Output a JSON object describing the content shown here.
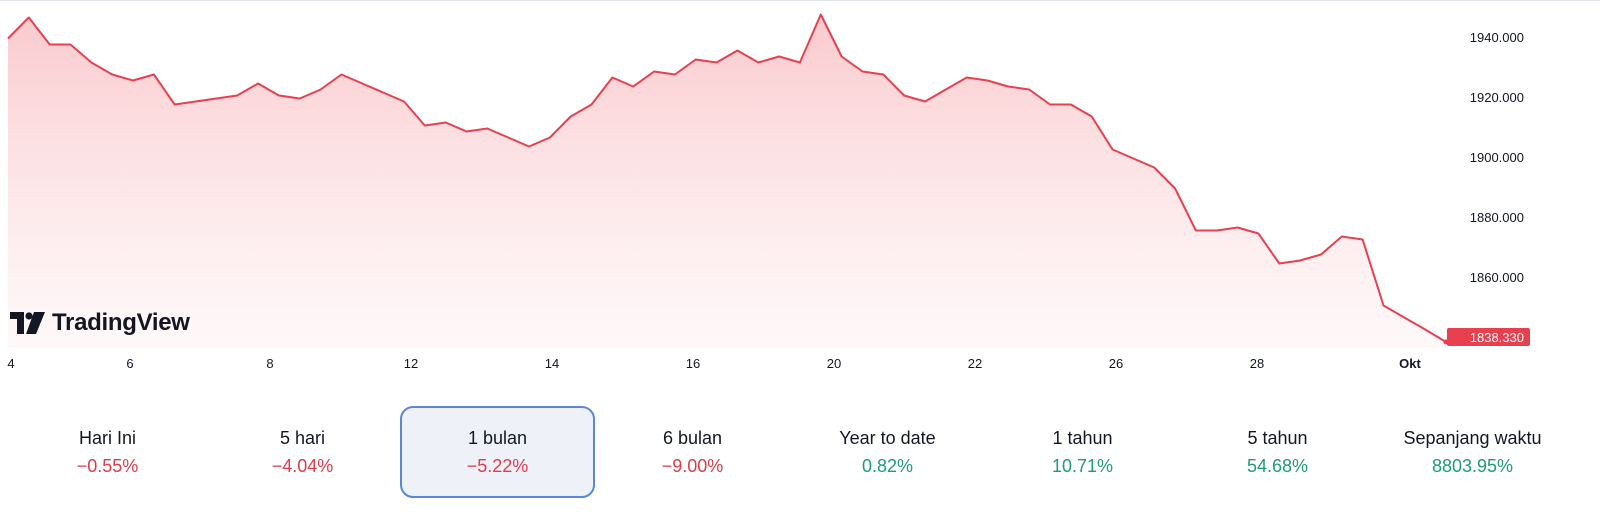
{
  "brand": {
    "logo_text": "TradingView"
  },
  "chart_data": {
    "type": "area",
    "x_ticks": [
      "4",
      "6",
      "8",
      "12",
      "14",
      "16",
      "20",
      "22",
      "26",
      "28",
      "Okt"
    ],
    "y_ticks": [
      1860,
      1880,
      1900,
      1920,
      1940
    ],
    "y_tick_labels": [
      "1860.000",
      "1880.000",
      "1900.000",
      "1920.000",
      "1940.000"
    ],
    "ylim": [
      1836,
      1947
    ],
    "last_value_label": "1838.330",
    "series": [
      {
        "points": [
          [
            "4",
            1940
          ],
          [
            "4",
            1946
          ],
          [
            "5",
            1938
          ],
          [
            "5",
            1937
          ],
          [
            "5",
            1932
          ],
          [
            "6",
            1927
          ],
          [
            "6",
            1926
          ],
          [
            "7",
            1927
          ],
          [
            "7",
            1918
          ],
          [
            "8",
            1918
          ],
          [
            "8",
            1920
          ],
          [
            "8",
            1920
          ],
          [
            "9",
            1925
          ],
          [
            "9",
            1920
          ],
          [
            "10",
            1920
          ],
          [
            "10",
            1922
          ],
          [
            "11",
            1928
          ],
          [
            "11",
            1924
          ],
          [
            "12",
            1922
          ],
          [
            "12",
            1918
          ],
          [
            "12",
            1911
          ],
          [
            "13",
            1911
          ],
          [
            "13",
            1909
          ],
          [
            "14",
            1909
          ],
          [
            "14",
            1907
          ],
          [
            "14",
            1903
          ],
          [
            "15",
            1907
          ],
          [
            "15",
            1913
          ],
          [
            "16",
            1918
          ],
          [
            "16",
            1926
          ],
          [
            "17",
            1924
          ],
          [
            "17",
            1928
          ],
          [
            "18",
            1928
          ],
          [
            "18",
            1932
          ],
          [
            "19",
            1932
          ],
          [
            "19",
            1935
          ],
          [
            "20",
            1932
          ],
          [
            "20",
            1933
          ],
          [
            "20",
            1932
          ],
          [
            "21",
            1947
          ],
          [
            "21",
            1934
          ],
          [
            "21",
            1928
          ],
          [
            "21",
            1928
          ],
          [
            "22",
            1920
          ],
          [
            "22",
            1919
          ],
          [
            "22",
            1922
          ],
          [
            "23",
            1927
          ],
          [
            "23",
            1925
          ],
          [
            "24",
            1924
          ],
          [
            "25",
            1922
          ],
          [
            "25",
            1918
          ],
          [
            "26",
            1917
          ],
          [
            "26",
            1914
          ],
          [
            "27",
            1902
          ],
          [
            "27",
            1900
          ],
          [
            "27",
            1896
          ],
          [
            "28",
            1890
          ],
          [
            "28",
            1875
          ],
          [
            "28",
            1876
          ],
          [
            "28",
            1876
          ],
          [
            "29",
            1875
          ],
          [
            "29",
            1864
          ],
          [
            "29",
            1866
          ],
          [
            "29",
            1867
          ],
          [
            "30",
            1874
          ],
          [
            "30",
            1872
          ],
          [
            "30",
            1851
          ],
          [
            "30",
            1846
          ],
          [
            "30",
            1843
          ],
          [
            "30",
            1838.33
          ]
        ]
      }
    ],
    "color": "#e8404f"
  },
  "periods": [
    {
      "label": "Hari Ini",
      "value": "−0.55%",
      "trend": "neg"
    },
    {
      "label": "5 hari",
      "value": "−4.04%",
      "trend": "neg"
    },
    {
      "label": "1 bulan",
      "value": "−5.22%",
      "trend": "neg",
      "active": true
    },
    {
      "label": "6 bulan",
      "value": "−9.00%",
      "trend": "neg"
    },
    {
      "label": "Year to date",
      "value": "0.82%",
      "trend": "pos"
    },
    {
      "label": "1 tahun",
      "value": "10.71%",
      "trend": "pos"
    },
    {
      "label": "5 tahun",
      "value": "54.68%",
      "trend": "pos"
    },
    {
      "label": "Sepanjang waktu",
      "value": "8803.95%",
      "trend": "pos"
    }
  ]
}
